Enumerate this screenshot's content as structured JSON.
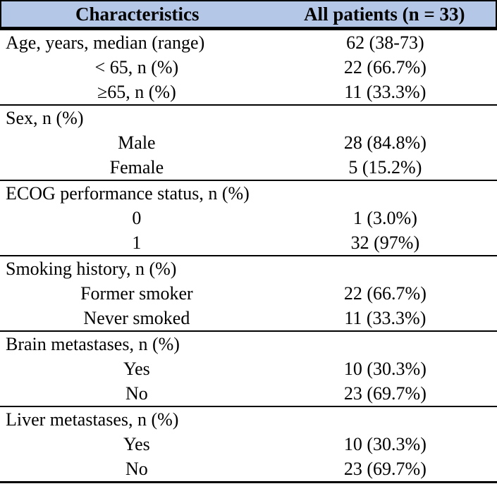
{
  "colors": {
    "header_bg": "#B4C7E7",
    "border": "#000000",
    "text": "#000000"
  },
  "header": {
    "col1": "Characteristics",
    "col2": "All patients (n = 33)"
  },
  "sections": [
    {
      "rows": [
        {
          "label": "Age, years, median (range)",
          "value": "62 (38-73)"
        },
        {
          "label": "< 65, n (%)",
          "value": "22 (66.7%)"
        },
        {
          "label": "≥65, n (%)",
          "value": "11 (33.3%)"
        }
      ]
    },
    {
      "rows": [
        {
          "label": "Sex, n (%)",
          "value": ""
        },
        {
          "label": "Male",
          "value": "28 (84.8%)"
        },
        {
          "label": "Female",
          "value": "5 (15.2%)"
        }
      ]
    },
    {
      "rows": [
        {
          "label": "ECOG performance status, n (%)",
          "value": ""
        },
        {
          "label": "0",
          "value": "1 (3.0%)"
        },
        {
          "label": "1",
          "value": "32 (97%)"
        }
      ]
    },
    {
      "rows": [
        {
          "label": "Smoking history, n (%)",
          "value": ""
        },
        {
          "label": "Former smoker",
          "value": "22 (66.7%)"
        },
        {
          "label": "Never smoked",
          "value": "11 (33.3%)"
        }
      ]
    },
    {
      "rows": [
        {
          "label": "Brain metastases, n (%)",
          "value": ""
        },
        {
          "label": "Yes",
          "value": "10 (30.3%)"
        },
        {
          "label": "No",
          "value": "23 (69.7%)"
        }
      ]
    },
    {
      "rows": [
        {
          "label": "Liver metastases, n (%)",
          "value": ""
        },
        {
          "label": "Yes",
          "value": "10 (30.3%)"
        },
        {
          "label": "No",
          "value": "23 (69.7%)"
        }
      ]
    }
  ]
}
